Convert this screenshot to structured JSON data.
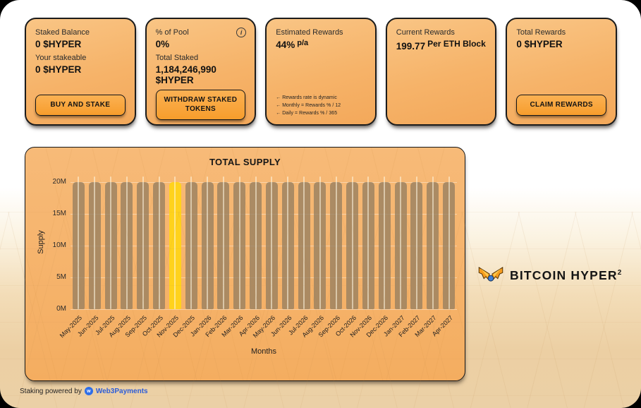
{
  "cards": [
    {
      "title": "Staked Balance",
      "value": "0 $HYPER",
      "subtitle": "Your stakeable",
      "subvalue": "0 $HYPER",
      "button": "BUY AND STAKE"
    },
    {
      "title": "% of Pool",
      "value": "0%",
      "subtitle": "Total Staked",
      "subvalue": "1,184,246,990 $HYPER",
      "button": "WITHDRAW STAKED TOKENS",
      "info_icon": "info-icon"
    },
    {
      "title": "Estimated Rewards",
      "value": "44%",
      "value_suffix": "p/a",
      "notes": [
        "← Rewards rate is dynamic",
        "← Monthly = Rewards % / 12",
        "← Daily = Rewards % / 365"
      ]
    },
    {
      "title": "Current Rewards",
      "value": "199.77",
      "value_suffix": "Per ETH Block"
    },
    {
      "title": "Total Rewards",
      "value": "0 $HYPER",
      "button": "CLAIM REWARDS"
    }
  ],
  "chart_data": {
    "type": "bar",
    "title": "TOTAL SUPPLY",
    "xlabel": "Months",
    "ylabel": "Supply",
    "categories": [
      "May-2025",
      "Jun-2025",
      "Jul-2025",
      "Aug-2025",
      "Sep-2025",
      "Oct-2025",
      "Nov-2025",
      "Dec-2025",
      "Jan-2026",
      "Feb-2026",
      "Mar-2026",
      "Apr-2026",
      "May-2026",
      "Jun-2026",
      "Jul-2026",
      "Aug-2026",
      "Sep-2026",
      "Oct-2026",
      "Nov-2026",
      "Dec-2026",
      "Jan-2027",
      "Feb-2027",
      "Mar-2027",
      "Apr-2027"
    ],
    "values": [
      20000000,
      20000000,
      20000000,
      20000000,
      20000000,
      20000000,
      20000000,
      20000000,
      20000000,
      20000000,
      20000000,
      20000000,
      20000000,
      20000000,
      20000000,
      20000000,
      20000000,
      20000000,
      20000000,
      20000000,
      20000000,
      20000000,
      20000000,
      20000000
    ],
    "yticks": [
      "0M",
      "5M",
      "10M",
      "15M",
      "20M"
    ],
    "ylim": [
      0,
      20000000
    ],
    "grid": true,
    "legend": "none",
    "highlight_index": 6,
    "bar_color": "rgba(150,127,96,0.78)",
    "highlight_color": "#ffd21c"
  },
  "logo": {
    "text": "BITCOIN HYPER",
    "sup": "2"
  },
  "footer": {
    "text": "Staking powered by",
    "icon_letter": "w",
    "brand": "Web3Payments"
  },
  "colors": {
    "accent_orange": "#f79d2c",
    "card_bg": "#f6b369",
    "panel_bg": "#f5b269",
    "highlight_yellow": "#ffd21c",
    "bar_tan": "#96805f",
    "brand_blue": "#2b5cd9",
    "border_dark": "#1c1c1c"
  }
}
